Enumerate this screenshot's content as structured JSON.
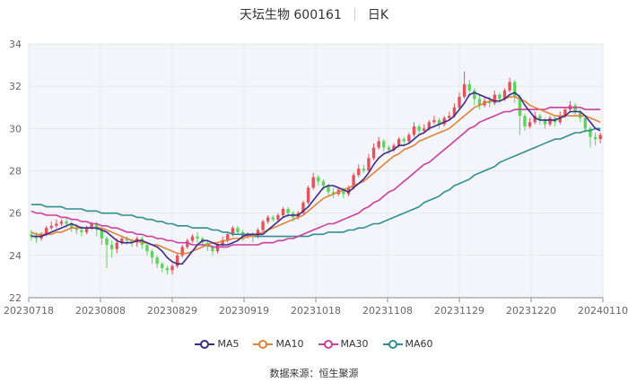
{
  "header": {
    "name": "天坛生物 600161",
    "period": "日K"
  },
  "source": "数据来源：恒生聚源",
  "colors": {
    "up": "#e4525a",
    "down": "#5ed35c",
    "ma5": "#3d2b8a",
    "ma10": "#e0823a",
    "ma30": "#cc3e9e",
    "ma60": "#2f8f90",
    "grid": "#e6e6e6",
    "plot_bg": "#f4f5fb"
  },
  "chart_data": {
    "type": "candlestick",
    "ylim": [
      22,
      34
    ],
    "yticks": [
      22,
      24,
      26,
      28,
      30,
      32,
      34
    ],
    "xticks": [
      "20230718",
      "20230808",
      "20230829",
      "20230919",
      "20231018",
      "20231108",
      "20231129",
      "20231220",
      "20240110"
    ],
    "legend_placement": "bottom",
    "candles": [
      [
        25.0,
        24.9,
        25.2,
        24.7
      ],
      [
        24.9,
        24.8,
        25.1,
        24.6
      ],
      [
        24.8,
        25.0,
        25.1,
        24.7
      ],
      [
        25.0,
        25.3,
        25.4,
        24.9
      ],
      [
        25.3,
        25.4,
        25.6,
        25.2
      ],
      [
        25.4,
        25.5,
        25.7,
        25.3
      ],
      [
        25.5,
        25.6,
        25.7,
        25.4
      ],
      [
        25.6,
        25.5,
        25.8,
        25.3
      ],
      [
        25.5,
        25.3,
        25.6,
        25.1
      ],
      [
        25.3,
        25.2,
        25.5,
        25.0
      ],
      [
        25.2,
        25.1,
        25.4,
        24.9
      ],
      [
        25.1,
        25.3,
        25.4,
        25.0
      ],
      [
        25.3,
        25.5,
        25.6,
        25.2
      ],
      [
        25.5,
        25.2,
        25.6,
        24.9
      ],
      [
        25.2,
        24.8,
        25.3,
        24.5
      ],
      [
        24.8,
        24.5,
        24.9,
        23.4
      ],
      [
        24.5,
        24.3,
        24.7,
        23.9
      ],
      [
        24.3,
        24.6,
        24.8,
        24.1
      ],
      [
        24.6,
        24.8,
        24.9,
        24.5
      ],
      [
        24.8,
        24.7,
        24.9,
        24.5
      ],
      [
        24.7,
        24.6,
        24.8,
        24.4
      ],
      [
        24.6,
        24.8,
        24.9,
        24.4
      ],
      [
        24.8,
        24.5,
        24.9,
        24.3
      ],
      [
        24.5,
        24.2,
        24.6,
        24.0
      ],
      [
        24.2,
        23.9,
        24.3,
        23.6
      ],
      [
        23.9,
        23.6,
        24.0,
        23.4
      ],
      [
        23.6,
        23.4,
        23.7,
        23.2
      ],
      [
        23.4,
        23.3,
        23.5,
        23.1
      ],
      [
        23.3,
        23.5,
        23.6,
        23.1
      ],
      [
        23.5,
        24.0,
        24.1,
        23.4
      ],
      [
        24.0,
        24.4,
        24.5,
        23.9
      ],
      [
        24.4,
        24.7,
        24.8,
        24.3
      ],
      [
        24.7,
        24.9,
        25.0,
        24.6
      ],
      [
        24.9,
        24.8,
        25.1,
        24.6
      ],
      [
        24.8,
        24.6,
        24.9,
        24.4
      ],
      [
        24.6,
        24.4,
        24.7,
        24.2
      ],
      [
        24.4,
        24.2,
        24.5,
        24.0
      ],
      [
        24.2,
        24.5,
        24.6,
        24.1
      ],
      [
        24.5,
        24.7,
        24.9,
        24.4
      ],
      [
        24.7,
        25.0,
        25.1,
        24.6
      ],
      [
        25.0,
        25.3,
        25.4,
        24.9
      ],
      [
        25.3,
        25.1,
        25.4,
        25.0
      ],
      [
        25.1,
        24.9,
        25.2,
        24.7
      ],
      [
        24.9,
        25.0,
        25.1,
        24.8
      ],
      [
        25.0,
        24.9,
        25.1,
        24.6
      ],
      [
        24.9,
        25.2,
        25.3,
        24.8
      ],
      [
        25.2,
        25.6,
        25.7,
        25.1
      ],
      [
        25.6,
        25.8,
        25.9,
        25.5
      ],
      [
        25.8,
        25.7,
        25.9,
        25.6
      ],
      [
        25.7,
        25.9,
        26.0,
        25.6
      ],
      [
        25.9,
        26.2,
        26.3,
        25.8
      ],
      [
        26.2,
        26.0,
        26.3,
        25.8
      ],
      [
        26.0,
        25.8,
        26.1,
        25.6
      ],
      [
        25.8,
        26.0,
        26.1,
        25.7
      ],
      [
        26.0,
        26.5,
        26.6,
        25.9
      ],
      [
        26.5,
        27.2,
        27.3,
        26.4
      ],
      [
        27.2,
        27.7,
        27.9,
        27.1
      ],
      [
        27.7,
        27.5,
        27.8,
        27.3
      ],
      [
        27.5,
        27.3,
        27.6,
        27.1
      ],
      [
        27.3,
        27.0,
        27.4,
        26.8
      ],
      [
        27.0,
        26.9,
        27.2,
        26.7
      ],
      [
        26.9,
        27.1,
        27.2,
        26.8
      ],
      [
        27.1,
        26.9,
        27.2,
        26.7
      ],
      [
        26.9,
        27.2,
        27.3,
        26.8
      ],
      [
        27.2,
        27.8,
        27.9,
        27.1
      ],
      [
        27.8,
        28.1,
        28.3,
        27.7
      ],
      [
        28.1,
        28.0,
        28.3,
        27.9
      ],
      [
        28.0,
        28.6,
        28.8,
        27.9
      ],
      [
        28.6,
        29.1,
        29.3,
        28.5
      ],
      [
        29.1,
        29.4,
        29.6,
        29.0
      ],
      [
        29.4,
        29.1,
        29.5,
        28.9
      ],
      [
        29.1,
        29.0,
        29.2,
        28.8
      ],
      [
        29.0,
        29.2,
        29.3,
        28.9
      ],
      [
        29.2,
        29.5,
        29.6,
        29.1
      ],
      [
        29.5,
        29.4,
        29.6,
        29.2
      ],
      [
        29.4,
        29.7,
        29.8,
        29.3
      ],
      [
        29.7,
        30.1,
        30.3,
        29.6
      ],
      [
        30.1,
        29.9,
        30.2,
        29.7
      ],
      [
        29.9,
        30.0,
        30.2,
        29.8
      ],
      [
        30.0,
        30.3,
        30.4,
        29.9
      ],
      [
        30.3,
        30.4,
        30.6,
        30.2
      ],
      [
        30.4,
        30.2,
        30.5,
        30.0
      ],
      [
        30.2,
        30.5,
        30.6,
        30.1
      ],
      [
        30.5,
        30.6,
        30.8,
        30.4
      ],
      [
        30.6,
        31.0,
        31.2,
        30.5
      ],
      [
        31.0,
        31.5,
        31.7,
        30.9
      ],
      [
        31.5,
        32.1,
        32.7,
        31.4
      ],
      [
        32.1,
        31.8,
        32.3,
        31.5
      ],
      [
        31.8,
        31.4,
        31.9,
        31.1
      ],
      [
        31.4,
        31.1,
        31.6,
        30.9
      ],
      [
        31.1,
        31.3,
        31.5,
        31.0
      ],
      [
        31.3,
        31.2,
        31.5,
        31.0
      ],
      [
        31.2,
        31.6,
        31.8,
        31.1
      ],
      [
        31.6,
        31.4,
        31.7,
        31.2
      ],
      [
        31.4,
        31.8,
        31.9,
        31.3
      ],
      [
        31.8,
        32.2,
        32.4,
        31.7
      ],
      [
        32.2,
        31.5,
        32.3,
        31.2
      ],
      [
        31.5,
        30.6,
        31.6,
        29.7
      ],
      [
        30.6,
        30.1,
        30.7,
        29.9
      ],
      [
        30.1,
        30.3,
        30.5,
        30.0
      ],
      [
        30.3,
        30.6,
        30.8,
        30.2
      ],
      [
        30.6,
        30.4,
        30.7,
        30.2
      ],
      [
        30.4,
        30.2,
        30.5,
        30.0
      ],
      [
        30.2,
        30.5,
        30.6,
        30.1
      ],
      [
        30.5,
        30.3,
        30.6,
        30.1
      ],
      [
        30.3,
        30.6,
        30.8,
        30.2
      ],
      [
        30.6,
        30.9,
        31.0,
        30.5
      ],
      [
        30.9,
        31.1,
        31.3,
        30.8
      ],
      [
        31.1,
        30.8,
        31.2,
        30.6
      ],
      [
        30.8,
        30.5,
        30.9,
        30.3
      ],
      [
        30.5,
        30.0,
        30.6,
        29.8
      ],
      [
        30.0,
        29.6,
        30.1,
        29.1
      ],
      [
        29.6,
        29.5,
        29.8,
        29.2
      ],
      [
        29.5,
        29.7,
        29.8,
        29.3
      ]
    ],
    "series": [
      {
        "name": "MA5",
        "values": [
          24.9,
          24.9,
          24.9,
          25.0,
          25.1,
          25.2,
          25.3,
          25.4,
          25.5,
          25.4,
          25.3,
          25.3,
          25.3,
          25.3,
          25.2,
          25.1,
          24.9,
          24.7,
          24.6,
          24.6,
          24.6,
          24.7,
          24.7,
          24.6,
          24.5,
          24.4,
          24.2,
          23.9,
          23.7,
          23.6,
          23.6,
          23.9,
          24.2,
          24.5,
          24.7,
          24.7,
          24.6,
          24.5,
          24.5,
          24.5,
          24.6,
          24.7,
          24.9,
          25.0,
          25.0,
          25.0,
          25.0,
          25.2,
          25.4,
          25.6,
          25.8,
          25.9,
          25.9,
          25.9,
          26.1,
          26.3,
          26.6,
          26.9,
          27.2,
          27.3,
          27.3,
          27.2,
          27.1,
          27.0,
          27.2,
          27.4,
          27.6,
          27.9,
          28.3,
          28.6,
          28.8,
          28.9,
          29.0,
          29.2,
          29.2,
          29.3,
          29.5,
          29.7,
          29.8,
          30.0,
          30.1,
          30.2,
          30.3,
          30.4,
          30.6,
          30.9,
          31.2,
          31.6,
          31.7,
          31.6,
          31.5,
          31.4,
          31.3,
          31.3,
          31.4,
          31.6,
          31.7,
          31.5,
          31.1,
          30.8,
          30.5,
          30.4,
          30.4,
          30.4,
          30.4,
          30.5,
          30.6,
          30.8,
          30.8,
          30.8,
          30.6,
          30.3,
          30.0,
          29.9
        ]
      },
      {
        "name": "MA10",
        "values": [
          25.1,
          25.0,
          25.0,
          25.0,
          25.0,
          25.1,
          25.1,
          25.2,
          25.3,
          25.3,
          25.3,
          25.3,
          25.3,
          25.3,
          25.3,
          25.2,
          25.1,
          25.0,
          24.9,
          24.8,
          24.7,
          24.7,
          24.6,
          24.6,
          24.5,
          24.5,
          24.4,
          24.3,
          24.2,
          24.1,
          24.1,
          24.1,
          24.2,
          24.3,
          24.4,
          24.5,
          24.6,
          24.6,
          24.7,
          24.7,
          24.8,
          24.8,
          24.8,
          24.9,
          24.9,
          25.0,
          25.1,
          25.2,
          25.3,
          25.4,
          25.5,
          25.6,
          25.7,
          25.8,
          25.9,
          26.1,
          26.3,
          26.5,
          26.7,
          26.8,
          26.9,
          27.0,
          27.1,
          27.2,
          27.3,
          27.4,
          27.5,
          27.7,
          27.9,
          28.1,
          28.3,
          28.5,
          28.7,
          28.8,
          29.0,
          29.1,
          29.2,
          29.4,
          29.5,
          29.6,
          29.7,
          29.8,
          29.9,
          30.0,
          30.2,
          30.4,
          30.6,
          30.8,
          31.0,
          31.1,
          31.2,
          31.3,
          31.3,
          31.3,
          31.4,
          31.5,
          31.5,
          31.4,
          31.3,
          31.1,
          31.0,
          30.9,
          30.8,
          30.7,
          30.6,
          30.6,
          30.6,
          30.6,
          30.6,
          30.6,
          30.6,
          30.5,
          30.4,
          30.3
        ]
      },
      {
        "name": "MA30",
        "values": [
          26.1,
          26.0,
          26.0,
          25.9,
          25.9,
          25.9,
          25.8,
          25.8,
          25.7,
          25.7,
          25.6,
          25.6,
          25.5,
          25.5,
          25.4,
          25.4,
          25.3,
          25.3,
          25.2,
          25.1,
          25.1,
          25.0,
          25.0,
          24.9,
          24.9,
          24.8,
          24.8,
          24.7,
          24.7,
          24.6,
          24.6,
          24.6,
          24.5,
          24.5,
          24.5,
          24.5,
          24.4,
          24.4,
          24.4,
          24.4,
          24.5,
          24.5,
          24.5,
          24.5,
          24.5,
          24.5,
          24.6,
          24.6,
          24.6,
          24.7,
          24.7,
          24.8,
          24.8,
          24.9,
          25.0,
          25.1,
          25.2,
          25.3,
          25.4,
          25.5,
          25.5,
          25.6,
          25.7,
          25.8,
          25.9,
          26.0,
          26.2,
          26.3,
          26.5,
          26.6,
          26.8,
          27.0,
          27.1,
          27.3,
          27.5,
          27.7,
          27.9,
          28.1,
          28.3,
          28.4,
          28.6,
          28.8,
          29.0,
          29.2,
          29.4,
          29.6,
          29.8,
          30.0,
          30.1,
          30.3,
          30.4,
          30.5,
          30.6,
          30.7,
          30.8,
          30.8,
          30.9,
          30.9,
          30.9,
          30.9,
          30.9,
          30.9,
          30.9,
          31.0,
          31.0,
          31.0,
          31.0,
          31.0,
          31.0,
          31.0,
          30.9,
          30.9,
          30.9,
          30.9
        ]
      },
      {
        "name": "MA60",
        "values": [
          26.4,
          26.4,
          26.4,
          26.3,
          26.3,
          26.3,
          26.3,
          26.2,
          26.2,
          26.2,
          26.2,
          26.1,
          26.1,
          26.1,
          26.0,
          26.0,
          26.0,
          26.0,
          25.9,
          25.9,
          25.9,
          25.8,
          25.8,
          25.7,
          25.7,
          25.6,
          25.6,
          25.5,
          25.5,
          25.4,
          25.4,
          25.4,
          25.3,
          25.3,
          25.3,
          25.3,
          25.2,
          25.2,
          25.1,
          25.1,
          25.0,
          25.0,
          25.0,
          25.0,
          24.9,
          24.9,
          24.9,
          24.9,
          24.9,
          24.9,
          24.9,
          24.9,
          24.9,
          24.9,
          24.9,
          24.9,
          25.0,
          25.0,
          25.0,
          25.1,
          25.1,
          25.1,
          25.1,
          25.2,
          25.2,
          25.3,
          25.3,
          25.4,
          25.5,
          25.5,
          25.6,
          25.7,
          25.8,
          25.9,
          26.0,
          26.1,
          26.2,
          26.3,
          26.5,
          26.6,
          26.7,
          26.8,
          27.0,
          27.1,
          27.3,
          27.4,
          27.5,
          27.6,
          27.8,
          27.9,
          28.0,
          28.1,
          28.2,
          28.4,
          28.5,
          28.6,
          28.7,
          28.8,
          28.9,
          29.0,
          29.1,
          29.2,
          29.3,
          29.4,
          29.5,
          29.5,
          29.6,
          29.7,
          29.8,
          29.8,
          29.9,
          29.9,
          30.0,
          30.0
        ]
      }
    ]
  }
}
